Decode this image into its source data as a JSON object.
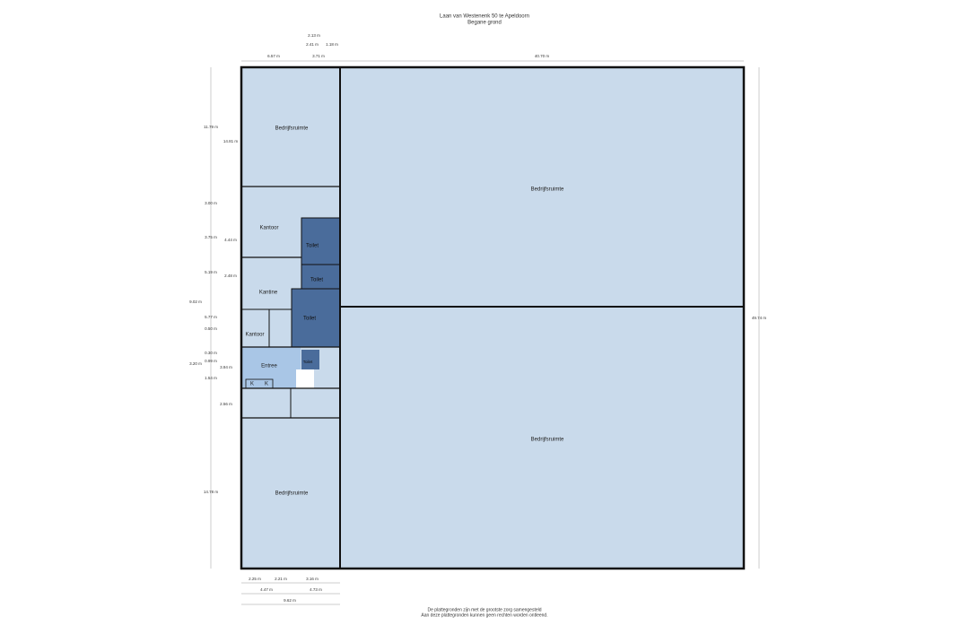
{
  "header": {
    "title": "Laan van Westenenk 50 te Apeldoorn",
    "subtitle": "Begane grond"
  },
  "rooms": [
    "Bedrijfsruimte",
    "Bedrijfsruimte",
    "Bedrijfsruimte",
    "Bedrijfsruimte",
    "Kantoor",
    "Toilet",
    "Toilet",
    "Kantine",
    "Toilet",
    "Kantoor",
    "Entree",
    "Toilet",
    "K",
    "K"
  ],
  "dimensions": {
    "top": [
      "2.13 m",
      "2.41 m",
      "1.18 m",
      "6.57 m",
      "3.71 m",
      "40.70 m"
    ],
    "left": [
      "11.79 m",
      "14.81 m",
      "3.00 m",
      "3.75 m",
      "4.44 m",
      "5.19 m",
      "2.48 m",
      "9.02 m",
      "5.77 m",
      "0.50 m",
      "0.30 m",
      "0.99 m",
      "3.20 m",
      "3.94 m",
      "1.54 m",
      "2.56 m",
      "14.78 m"
    ],
    "right": [
      "49.74 m"
    ],
    "bottom": [
      "2.25 m",
      "2.21 m",
      "3.16 m",
      "4.47 m",
      "4.73 m",
      "9.62 m"
    ]
  },
  "footer": [
    "De plattegronden zijn met de grootste zorg samengesteld",
    "Aan deze plattegronden kunnen geen rechten worden ontleend."
  ]
}
